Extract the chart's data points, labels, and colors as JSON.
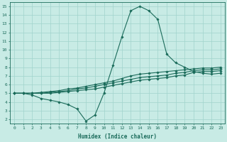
{
  "xlabel": "Humidex (Indice chaleur)",
  "xlim": [
    -0.5,
    23.5
  ],
  "ylim": [
    1.5,
    15.5
  ],
  "xticks": [
    0,
    1,
    2,
    3,
    4,
    5,
    6,
    7,
    8,
    9,
    10,
    11,
    12,
    13,
    14,
    15,
    16,
    17,
    18,
    19,
    20,
    21,
    22,
    23
  ],
  "yticks": [
    2,
    3,
    4,
    5,
    6,
    7,
    8,
    9,
    10,
    11,
    12,
    13,
    14,
    15
  ],
  "bg_color": "#c8ebe5",
  "line_color": "#1a6b5a",
  "grid_color": "#a0d4cc",
  "line1_x": [
    0,
    1,
    2,
    3,
    4,
    5,
    6,
    7,
    8,
    9,
    10,
    11,
    12,
    13,
    14,
    15,
    16,
    17,
    18,
    19,
    20,
    21,
    22,
    23
  ],
  "line1_y": [
    5.0,
    5.0,
    4.8,
    4.4,
    4.2,
    4.0,
    3.7,
    3.2,
    1.8,
    2.5,
    5.0,
    8.2,
    11.5,
    14.5,
    15.0,
    14.5,
    13.5,
    9.5,
    8.5,
    8.0,
    7.5,
    7.3,
    7.2,
    7.3
  ],
  "line2_x": [
    0,
    1,
    2,
    3,
    4,
    5,
    6,
    7,
    8,
    9,
    10,
    11,
    12,
    13,
    14,
    15,
    16,
    17,
    18,
    19,
    20,
    21,
    22,
    23
  ],
  "line2_y": [
    5.0,
    5.0,
    5.0,
    5.0,
    5.0,
    5.1,
    5.2,
    5.3,
    5.4,
    5.5,
    5.7,
    5.9,
    6.1,
    6.3,
    6.5,
    6.6,
    6.7,
    6.8,
    7.0,
    7.1,
    7.4,
    7.5,
    7.5,
    7.6
  ],
  "line3_x": [
    0,
    1,
    2,
    3,
    4,
    5,
    6,
    7,
    8,
    9,
    10,
    11,
    12,
    13,
    14,
    15,
    16,
    17,
    18,
    19,
    20,
    21,
    22,
    23
  ],
  "line3_y": [
    5.0,
    5.0,
    5.0,
    5.0,
    5.1,
    5.2,
    5.3,
    5.5,
    5.6,
    5.8,
    6.0,
    6.2,
    6.4,
    6.6,
    6.8,
    6.9,
    7.0,
    7.1,
    7.3,
    7.4,
    7.6,
    7.7,
    7.7,
    7.8
  ],
  "line4_x": [
    0,
    1,
    2,
    3,
    4,
    5,
    6,
    7,
    8,
    9,
    10,
    11,
    12,
    13,
    14,
    15,
    16,
    17,
    18,
    19,
    20,
    21,
    22,
    23
  ],
  "line4_y": [
    5.0,
    5.0,
    5.0,
    5.1,
    5.2,
    5.3,
    5.5,
    5.6,
    5.8,
    6.0,
    6.2,
    6.4,
    6.7,
    7.0,
    7.2,
    7.3,
    7.4,
    7.5,
    7.6,
    7.7,
    7.8,
    7.9,
    7.9,
    8.0
  ]
}
